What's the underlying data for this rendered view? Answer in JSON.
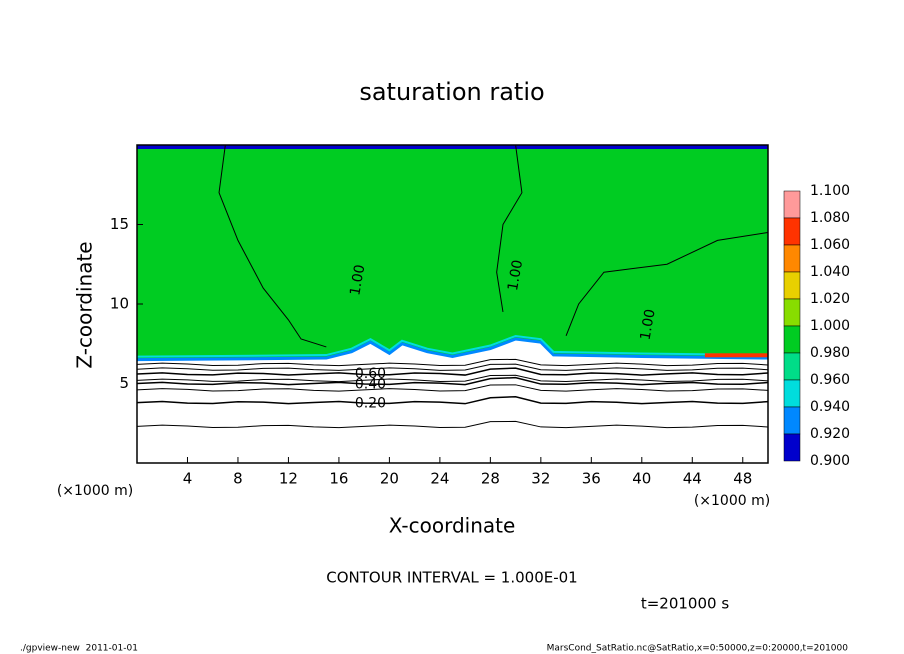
{
  "chart_data": {
    "type": "contour",
    "title": "saturation ratio",
    "x_label": "X-coordinate",
    "y_label": "Z-coordinate",
    "x_unit_label": "(×1000 m)",
    "y_unit_label": "(×1000 m)",
    "xlim": [
      0,
      50
    ],
    "xticks": [
      4,
      8,
      12,
      16,
      20,
      24,
      28,
      32,
      36,
      40,
      44,
      48
    ],
    "ylim": [
      0,
      20
    ],
    "yticks": [
      5,
      10,
      15
    ],
    "contours": [
      {
        "value": 1,
        "label": "1.00"
      },
      {
        "value": 0.6,
        "label": "0.60"
      },
      {
        "value": 0.4,
        "label": "0.40"
      },
      {
        "value": 0.2,
        "label": "0.20"
      }
    ],
    "colorbar": {
      "ticks": [
        {
          "value": 1.1,
          "label": "1.100"
        },
        {
          "value": 1.08,
          "label": "1.080"
        },
        {
          "value": 1.06,
          "label": "1.060"
        },
        {
          "value": 1.04,
          "label": "1.040"
        },
        {
          "value": 1.02,
          "label": "1.020"
        },
        {
          "value": 1,
          "label": "1.000"
        },
        {
          "value": 0.98,
          "label": "0.980"
        },
        {
          "value": 0.96,
          "label": "0.960"
        },
        {
          "value": 0.94,
          "label": "0.940"
        },
        {
          "value": 0.92,
          "label": "0.920"
        },
        {
          "value": 0.9,
          "label": "0.900"
        }
      ],
      "colors": [
        "#ff9a9a",
        "#ff3300",
        "#ff8800",
        "#e8d000",
        "#88dd00",
        "#00cc22",
        "#00dd88",
        "#00dddd",
        "#0088ff",
        "#0000cc",
        "#6a00a8"
      ]
    },
    "contour_interval_label": "CONTOUR INTERVAL = 1.000E-01",
    "time_label": "t=201000 s",
    "footer_left": "./gpview-new  2011-01-01",
    "footer_right": "MarsCond_SatRatio.nc@SatRatio,x=0:50000,z=0:20000,t=201000"
  }
}
